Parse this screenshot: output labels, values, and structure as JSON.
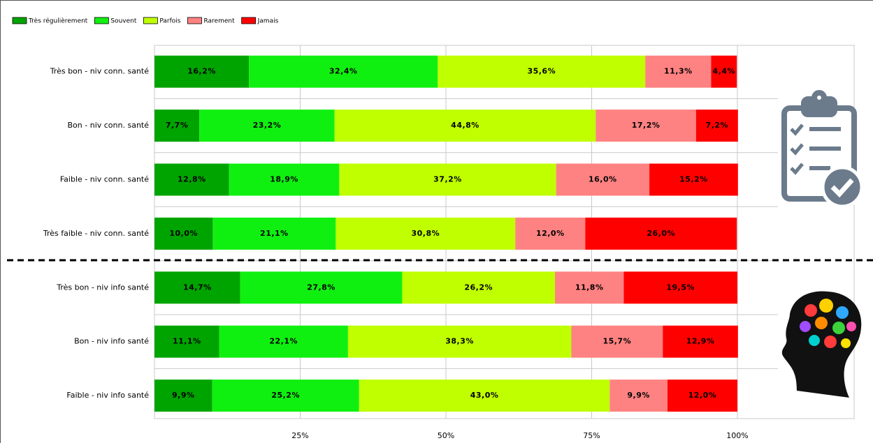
{
  "chart_data": {
    "type": "stacked-bar-horizontal",
    "categories": [
      "Très bon - niv conn. santé",
      "Bon - niv conn. santé",
      "Faible - niv conn. santé",
      "Très faible - niv conn. santé",
      "Très bon - niv info santé",
      "Bon - niv info santé",
      "Faible - niv info santé"
    ],
    "series": [
      {
        "name": "Très régulièrement",
        "color": "#00a400",
        "values": [
          16.2,
          7.7,
          12.8,
          10.0,
          14.7,
          11.1,
          9.9
        ],
        "value_labels": [
          "16,2%",
          "7,7%",
          "12,8%",
          "10,0%",
          "14,7%",
          "11,1%",
          "9,9%"
        ]
      },
      {
        "name": "Souvent",
        "color": "#10f010",
        "values": [
          32.4,
          23.2,
          18.9,
          21.1,
          27.8,
          22.1,
          25.2
        ],
        "value_labels": [
          "32,4%",
          "23,2%",
          "18,9%",
          "21,1%",
          "27,8%",
          "22,1%",
          "25,2%"
        ]
      },
      {
        "name": "Parfois",
        "color": "#c0ff00",
        "values": [
          35.6,
          44.8,
          37.2,
          30.8,
          26.2,
          38.3,
          43.0
        ],
        "value_labels": [
          "35,6%",
          "44,8%",
          "37,2%",
          "30,8%",
          "26,2%",
          "38,3%",
          "43,0%"
        ]
      },
      {
        "name": "Rarement",
        "color": "#ff8282",
        "values": [
          11.3,
          17.2,
          16.0,
          12.0,
          11.8,
          15.7,
          9.9
        ],
        "value_labels": [
          "11,3%",
          "17,2%",
          "16,0%",
          "12,0%",
          "11,8%",
          "15,7%",
          "9,9%"
        ]
      },
      {
        "name": "Jamais",
        "color": "#ff0000",
        "values": [
          4.4,
          7.2,
          15.2,
          26.0,
          19.5,
          12.9,
          12.0
        ],
        "value_labels": [
          "4,4%",
          "7,2%",
          "15,2%",
          "26,0%",
          "19,5%",
          "12,9%",
          "12,0%"
        ]
      }
    ],
    "xlim": [
      0,
      100
    ],
    "xticks": [
      {
        "value": 25,
        "label": "25%"
      },
      {
        "value": 50,
        "label": "50%"
      },
      {
        "value": 75,
        "label": "75%"
      },
      {
        "value": 100,
        "label": "100%"
      }
    ],
    "grid": true,
    "legend": "top-left"
  }
}
